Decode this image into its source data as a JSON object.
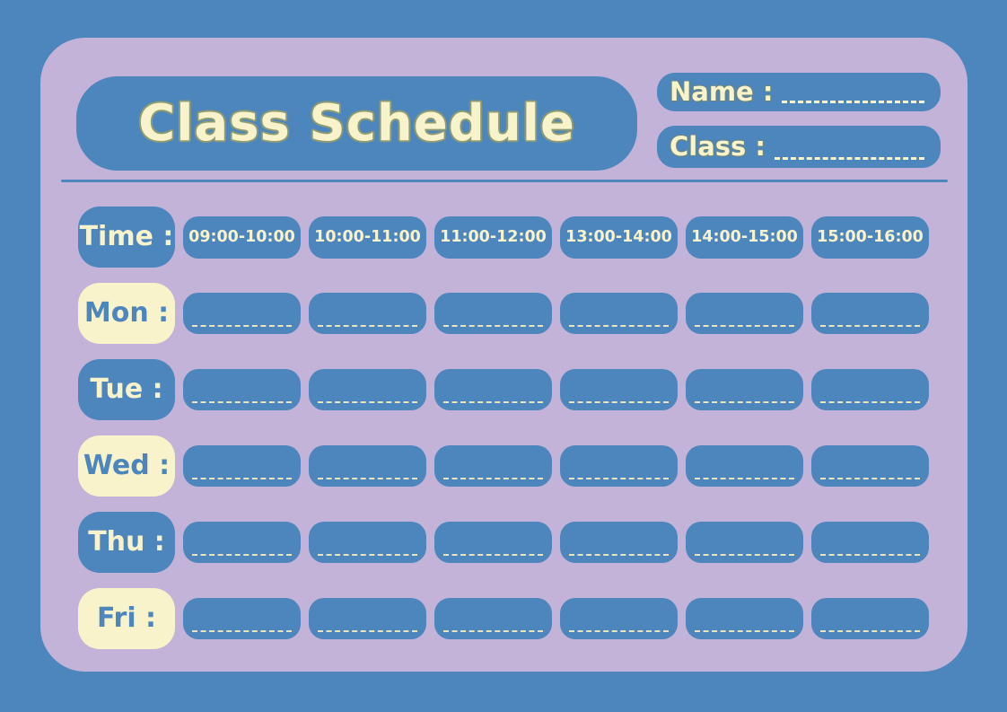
{
  "header": {
    "title": "Class Schedule",
    "name_label": "Name :",
    "name_value": "",
    "class_label": "Class :",
    "class_value": ""
  },
  "schedule": {
    "time_label": "Time :",
    "time_slots": [
      "09:00-10:00",
      "10:00-11:00",
      "11:00-12:00",
      "13:00-14:00",
      "14:00-15:00",
      "15:00-16:00"
    ],
    "days": [
      {
        "label": "Mon :",
        "entries": [
          "",
          "",
          "",
          "",
          "",
          ""
        ]
      },
      {
        "label": "Tue :",
        "entries": [
          "",
          "",
          "",
          "",
          "",
          ""
        ]
      },
      {
        "label": "Wed :",
        "entries": [
          "",
          "",
          "",
          "",
          "",
          ""
        ]
      },
      {
        "label": "Thu :",
        "entries": [
          "",
          "",
          "",
          "",
          "",
          ""
        ]
      },
      {
        "label": "Fri :",
        "entries": [
          "",
          "",
          "",
          "",
          "",
          ""
        ]
      }
    ]
  },
  "colors": {
    "blue": "#4d86bd",
    "lavender": "#c3b3d8",
    "cream": "#f8f3cb",
    "title_outline": "#8e9b72"
  }
}
